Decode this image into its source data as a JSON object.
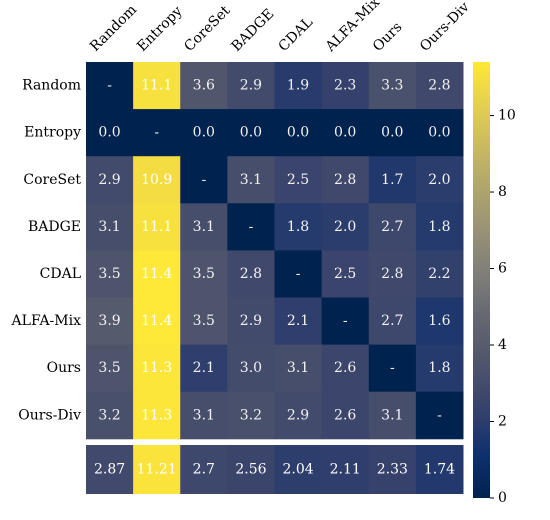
{
  "chart_data": {
    "type": "heatmap",
    "colormap": "cividis",
    "col_labels": [
      "Random",
      "Entropy",
      "CoreSet",
      "BADGE",
      "CDAL",
      "ALFA-Mix",
      "Ours",
      "Ours-Div"
    ],
    "row_labels": [
      "Random",
      "Entropy",
      "CoreSet",
      "BADGE",
      "CDAL",
      "ALFA-Mix",
      "Ours",
      "Ours-Div"
    ],
    "values": [
      [
        null,
        11.1,
        3.6,
        2.9,
        1.9,
        2.3,
        3.3,
        2.8
      ],
      [
        0.0,
        null,
        0.0,
        0.0,
        0.0,
        0.0,
        0.0,
        0.0
      ],
      [
        2.9,
        10.9,
        null,
        3.1,
        2.5,
        2.8,
        1.7,
        2.0
      ],
      [
        3.1,
        11.1,
        3.1,
        null,
        1.8,
        2.0,
        2.7,
        1.8
      ],
      [
        3.5,
        11.4,
        3.5,
        2.8,
        null,
        2.5,
        2.8,
        2.2
      ],
      [
        3.9,
        11.4,
        3.5,
        2.9,
        2.1,
        null,
        2.7,
        1.6
      ],
      [
        3.5,
        11.3,
        2.1,
        3.0,
        3.1,
        2.6,
        null,
        1.8
      ],
      [
        3.2,
        11.3,
        3.1,
        3.2,
        2.9,
        2.6,
        3.1,
        null
      ]
    ],
    "cell_text": [
      [
        "-",
        "11.1",
        "3.6",
        "2.9",
        "1.9",
        "2.3",
        "3.3",
        "2.8"
      ],
      [
        "0.0",
        "-",
        "0.0",
        "0.0",
        "0.0",
        "0.0",
        "0.0",
        "0.0"
      ],
      [
        "2.9",
        "10.9",
        "-",
        "3.1",
        "2.5",
        "2.8",
        "1.7",
        "2.0"
      ],
      [
        "3.1",
        "11.1",
        "3.1",
        "-",
        "1.8",
        "2.0",
        "2.7",
        "1.8"
      ],
      [
        "3.5",
        "11.4",
        "3.5",
        "2.8",
        "-",
        "2.5",
        "2.8",
        "2.2"
      ],
      [
        "3.9",
        "11.4",
        "3.5",
        "2.9",
        "2.1",
        "-",
        "2.7",
        "1.6"
      ],
      [
        "3.5",
        "11.3",
        "2.1",
        "3.0",
        "3.1",
        "2.6",
        "-",
        "1.8"
      ],
      [
        "3.2",
        "11.3",
        "3.1",
        "3.2",
        "2.9",
        "2.6",
        "3.1",
        "-"
      ]
    ],
    "summary_row": [
      2.87,
      11.21,
      2.7,
      2.56,
      2.04,
      2.11,
      2.33,
      1.74
    ],
    "summary_text": [
      "2.87",
      "11.21",
      "2.7",
      "2.56",
      "2.04",
      "2.11",
      "2.33",
      "1.74"
    ],
    "colorbar": {
      "range": [
        0,
        11.4
      ],
      "ticks": [
        0,
        2,
        4,
        6,
        8,
        10
      ],
      "tick_labels": [
        "0",
        "2",
        "4",
        "6",
        "8",
        "10"
      ]
    },
    "title": "",
    "xlabel": "",
    "ylabel": ""
  }
}
